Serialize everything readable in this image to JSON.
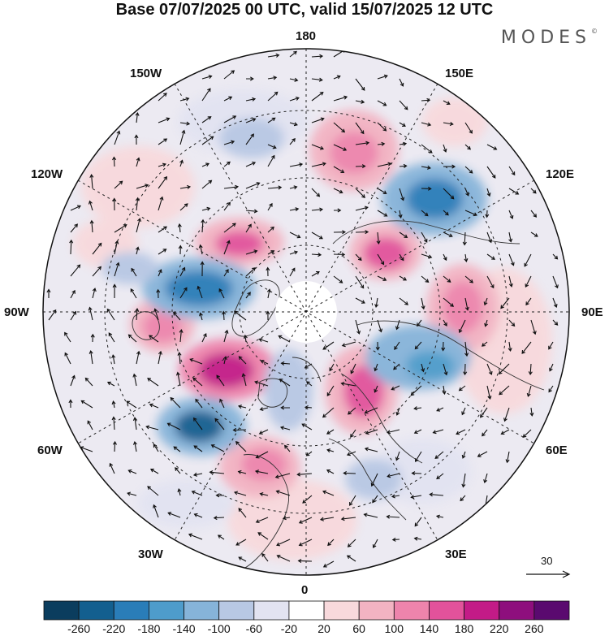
{
  "title": "Base 07/07/2025 00 UTC, valid 15/07/2025 12 UTC",
  "logo": {
    "text": "MODES",
    "mark": "©"
  },
  "longitude_labels": {
    "top": "180",
    "bottom": "0",
    "left": "90W",
    "right": "90E",
    "upper_left_1": "150W",
    "upper_left_2": "120W",
    "upper_right_1": "150E",
    "upper_right_2": "120E",
    "lower_left_1": "60W",
    "lower_left_2": "30W",
    "lower_right_1": "60E",
    "lower_right_2": "30E"
  },
  "wind_scale": {
    "label": "30"
  },
  "colorbar": {
    "labels": [
      "-260",
      "-220",
      "-180",
      "-140",
      "-100",
      "-60",
      "-20",
      "20",
      "60",
      "100",
      "140",
      "180",
      "220",
      "260"
    ],
    "colors": [
      "#0b3d5e",
      "#135f8f",
      "#2a7db8",
      "#4e9ccb",
      "#86b4d9",
      "#b8c8e4",
      "#e2e3f1",
      "#ffffff",
      "#f8d9dc",
      "#f3b3c2",
      "#ee84ac",
      "#e2529b",
      "#c31b87",
      "#8e0f7d",
      "#5a0a6f"
    ]
  },
  "anomaly_colors": {
    "land_outline": "#333333",
    "no_data_center": "#ffffff"
  }
}
